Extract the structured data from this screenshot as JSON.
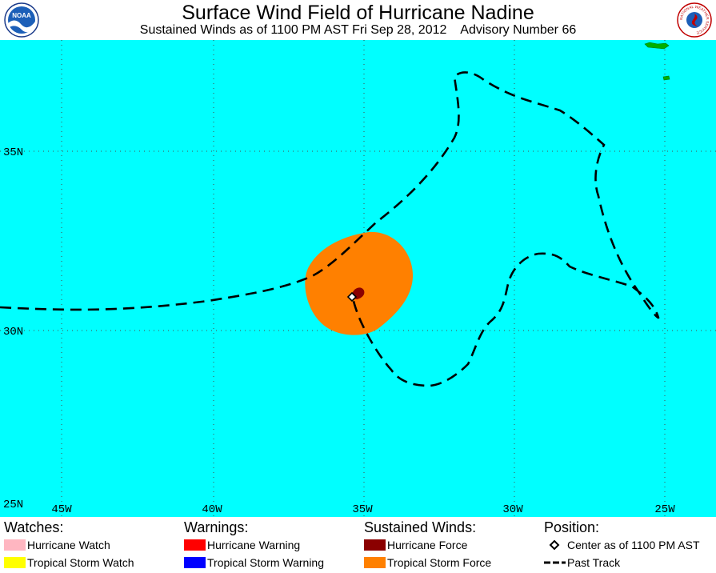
{
  "header": {
    "title": "Surface Wind Field of Hurricane Nadine",
    "subtitle": "Sustained Winds as of 1100 PM AST Fri Sep 28, 2012    Advisory Number 66",
    "logo_left_icon": "noaa-logo-icon",
    "logo_left_text": "NOAA",
    "logo_right_icon": "national-weather-service-logo-icon",
    "logo_right_text": "NATIONAL WEATHER SERVICE"
  },
  "map": {
    "colors": {
      "ocean": "#00ffff",
      "land": "#00b000",
      "tropical_storm_force": "#ff8000",
      "hurricane_force": "#8b0000",
      "track": "#000000",
      "grid": "#555555"
    },
    "lat_labels": [
      "35N",
      "30N",
      "25N"
    ],
    "lon_labels": [
      "45W",
      "40W",
      "35W",
      "30W",
      "25W"
    ]
  },
  "legend": {
    "watches": {
      "heading": "Watches:",
      "items": [
        {
          "label": "Hurricane Watch",
          "color": "#ffb6c1"
        },
        {
          "label": "Tropical Storm Watch",
          "color": "#ffff00"
        }
      ]
    },
    "warnings": {
      "heading": "Warnings:",
      "items": [
        {
          "label": "Hurricane Warning",
          "color": "#ff0000"
        },
        {
          "label": "Tropical Storm Warning",
          "color": "#0000ff"
        }
      ]
    },
    "winds": {
      "heading": "Sustained Winds:",
      "items": [
        {
          "label": "Hurricane Force",
          "color": "#8b0000"
        },
        {
          "label": "Tropical Storm Force",
          "color": "#ff8000"
        }
      ]
    },
    "position": {
      "heading": "Position:",
      "center_label": "Center as of 1100 PM AST",
      "center_icon": "diamond-marker-icon",
      "track_label": "Past Track",
      "track_icon": "dashed-line-icon"
    }
  }
}
